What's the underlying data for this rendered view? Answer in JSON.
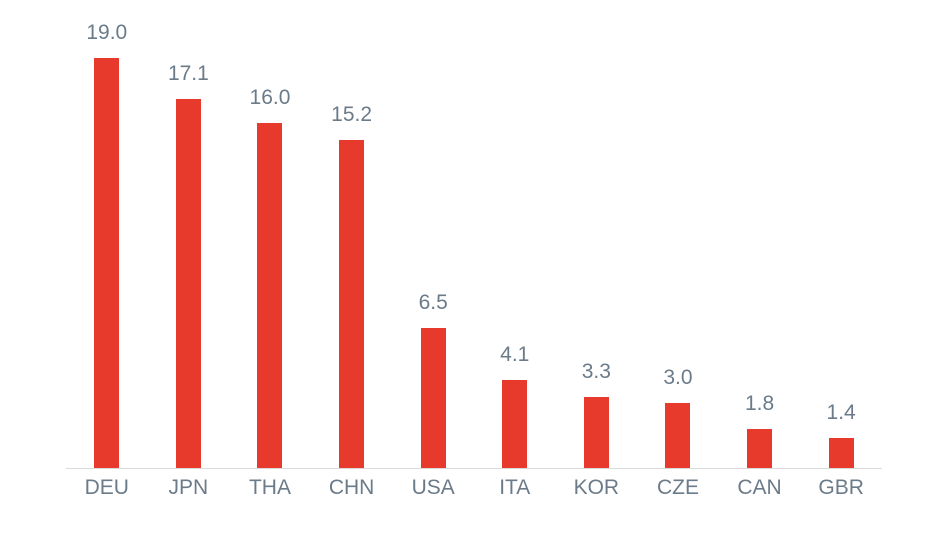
{
  "chart_data": {
    "type": "bar",
    "title": "",
    "xlabel": "",
    "ylabel": "",
    "categories": [
      "DEU",
      "JPN",
      "THA",
      "CHN",
      "USA",
      "ITA",
      "KOR",
      "CZE",
      "CAN",
      "GBR"
    ],
    "values": [
      19.0,
      17.1,
      16.0,
      15.2,
      6.5,
      4.1,
      3.3,
      3.0,
      1.8,
      1.4
    ],
    "value_labels": [
      "19.0",
      "17.1",
      "16.0",
      "15.2",
      "6.5",
      "4.1",
      "3.3",
      "3.0",
      "1.8",
      "1.4"
    ],
    "ylim": [
      0,
      19.0
    ],
    "grid": false,
    "legend": false,
    "bar_color": "#E8392D",
    "label_color": "#6B7B89",
    "axis_line_color": "#D9D9D9",
    "background_color": "#FFFFFF"
  }
}
